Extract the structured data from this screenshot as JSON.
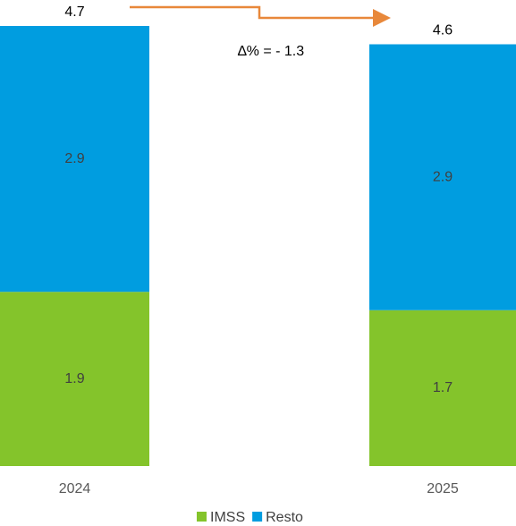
{
  "chart_data": {
    "type": "stacked-bar",
    "categories": [
      "2024",
      "2025"
    ],
    "series": [
      {
        "name": "IMSS",
        "color": "#84c42b",
        "values": [
          1.9,
          1.7
        ]
      },
      {
        "name": "Resto",
        "color": "#009de0",
        "values": [
          2.9,
          2.9
        ]
      }
    ],
    "totals": [
      4.7,
      4.6
    ],
    "annotation": "∆% = - 1.3",
    "ylim": [
      0,
      4.8
    ]
  }
}
